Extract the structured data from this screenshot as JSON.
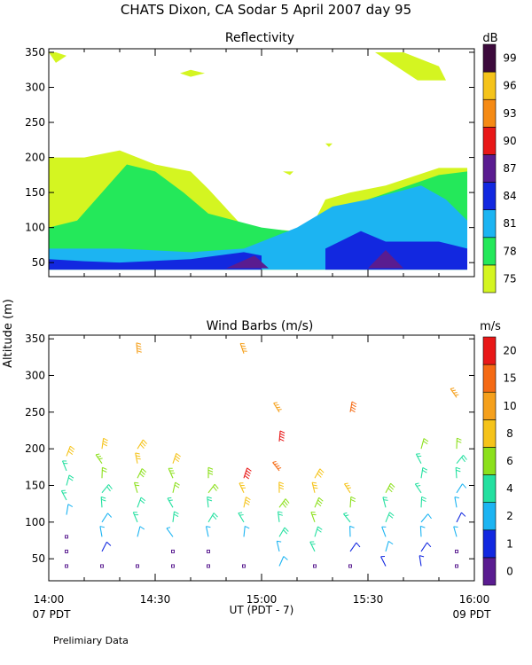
{
  "title": "CHATS Dixon, CA  Sodar    5 April 2007   day  95",
  "ylabel": "Altitude  (m)",
  "xlabel": "UT  (PDT - 7)",
  "left_corner_label": "07 PDT",
  "right_corner_label": "09 PDT",
  "footnote": "Prelimiary Data",
  "colors": {
    "reflectivity": [
      "#d4f521",
      "#24e85a",
      "#1cb4f2",
      "#1228e0",
      "#5a1c90",
      "#e81818",
      "#f58a14",
      "#f5c31a",
      "#3c0a3c"
    ],
    "wind": [
      "#5a1c90",
      "#1228e0",
      "#1cb4f2",
      "#24e0a0",
      "#8ce01c",
      "#f5c31a",
      "#f5a01c",
      "#f56a14",
      "#e81818"
    ]
  },
  "chart_data": [
    {
      "type": "heatmap",
      "title": "Reflectivity",
      "colorbar_label": "dB",
      "colorbar_ticks": [
        "75",
        "78",
        "81",
        "84",
        "87",
        "90",
        "93",
        "96",
        "99"
      ],
      "ylim": [
        30,
        355
      ],
      "yticks": [
        "50",
        "100",
        "150",
        "200",
        "250",
        "300",
        "350"
      ],
      "xlim": [
        "14:00",
        "16:00"
      ],
      "xticks": [
        "14:00",
        "14:30",
        "15:00",
        "15:30",
        "16:00"
      ],
      "grid": false,
      "contour_levels": [
        {
          "level_db": 75,
          "regions": [
            {
              "t": [
                0,
                10,
                20,
                30,
                40,
                45,
                55,
                70,
                75,
                78,
                85,
                95,
                110,
                118
              ],
              "alt": [
                200,
                200,
                210,
                190,
                180,
                155,
                100,
                95,
                110,
                140,
                150,
                160,
                185,
                185
              ],
              "base": 40
            },
            {
              "t": [
                0,
                2,
                5,
                2
              ],
              "alt": [
                350,
                350,
                345,
                335
              ]
            },
            {
              "t": [
                92,
                100,
                110,
                112,
                104
              ],
              "alt": [
                350,
                350,
                330,
                310,
                310
              ]
            },
            {
              "t": [
                37,
                40,
                44,
                40
              ],
              "alt": [
                320,
                325,
                320,
                315
              ]
            },
            {
              "t": [
                66,
                68,
                69
              ],
              "alt": [
                180,
                175,
                180
              ]
            },
            {
              "t": [
                78,
                79,
                80
              ],
              "alt": [
                220,
                215,
                220
              ]
            }
          ]
        },
        {
          "level_db": 78,
          "regions": [
            {
              "t": [
                0,
                8,
                15,
                22,
                30,
                38,
                45,
                60,
                68,
                75,
                90,
                110,
                118
              ],
              "alt": [
                100,
                110,
                150,
                190,
                180,
                150,
                120,
                100,
                95,
                90,
                140,
                175,
                180
              ],
              "base": 40
            }
          ]
        },
        {
          "level_db": 81,
          "regions": [
            {
              "t": [
                0,
                20,
                40,
                55,
                60,
                70,
                80,
                90,
                105,
                112,
                118
              ],
              "alt": [
                70,
                70,
                65,
                70,
                80,
                100,
                130,
                140,
                160,
                140,
                110
              ],
              "base": 40
            }
          ]
        },
        {
          "level_db": 84,
          "regions": [
            {
              "t": [
                0,
                10,
                20,
                40,
                55,
                60
              ],
              "alt": [
                55,
                52,
                50,
                55,
                65,
                60
              ],
              "base": 40
            },
            {
              "t": [
                78,
                88,
                95,
                110,
                118
              ],
              "alt": [
                70,
                95,
                80,
                80,
                70
              ],
              "base": 40
            }
          ]
        },
        {
          "level_db": 87,
          "regions": [
            {
              "t": [
                50,
                58,
                62
              ],
              "alt": [
                42,
                60,
                42
              ]
            },
            {
              "t": [
                90,
                95,
                100
              ],
              "alt": [
                42,
                68,
                42
              ]
            }
          ]
        }
      ]
    },
    {
      "type": "scatter",
      "title": "Wind Barbs (m/s)",
      "colorbar_label": "m/s",
      "colorbar_ticks": [
        "0",
        "1",
        "2",
        "4",
        "6",
        "8",
        "10",
        "15",
        "20"
      ],
      "ylim": [
        20,
        355
      ],
      "yticks": [
        "50",
        "100",
        "150",
        "200",
        "250",
        "300",
        "350"
      ],
      "xlim": [
        "14:00",
        "16:00"
      ],
      "xticks": [
        "14:00",
        "14:30",
        "15:00",
        "15:30",
        "16:00"
      ],
      "xlabel": "UT  (PDT - 7)",
      "grid": false,
      "profiles_minutes": [
        5,
        15,
        25,
        35,
        45,
        55,
        65,
        75,
        85,
        95,
        105,
        115
      ],
      "barbs": [
        {
          "t": 5,
          "alt": 40,
          "speed": 0.5
        },
        {
          "t": 5,
          "alt": 60,
          "speed": 0.5
        },
        {
          "t": 5,
          "alt": 80,
          "speed": 0.5
        },
        {
          "t": 5,
          "alt": 110,
          "speed": 3
        },
        {
          "t": 5,
          "alt": 130,
          "speed": 4
        },
        {
          "t": 5,
          "alt": 150,
          "speed": 5
        },
        {
          "t": 5,
          "alt": 170,
          "speed": 5
        },
        {
          "t": 5,
          "alt": 190,
          "speed": 9
        },
        {
          "t": 15,
          "alt": 40,
          "speed": 0.5
        },
        {
          "t": 15,
          "alt": 60,
          "speed": 1
        },
        {
          "t": 15,
          "alt": 80,
          "speed": 2
        },
        {
          "t": 15,
          "alt": 100,
          "speed": 3
        },
        {
          "t": 15,
          "alt": 120,
          "speed": 4
        },
        {
          "t": 15,
          "alt": 140,
          "speed": 5
        },
        {
          "t": 15,
          "alt": 160,
          "speed": 6
        },
        {
          "t": 15,
          "alt": 180,
          "speed": 7
        },
        {
          "t": 15,
          "alt": 200,
          "speed": 9
        },
        {
          "t": 25,
          "alt": 40,
          "speed": 0.5
        },
        {
          "t": 25,
          "alt": 80,
          "speed": 3
        },
        {
          "t": 25,
          "alt": 100,
          "speed": 4
        },
        {
          "t": 25,
          "alt": 120,
          "speed": 5
        },
        {
          "t": 25,
          "alt": 140,
          "speed": 6
        },
        {
          "t": 25,
          "alt": 160,
          "speed": 7
        },
        {
          "t": 25,
          "alt": 180,
          "speed": 8
        },
        {
          "t": 25,
          "alt": 200,
          "speed": 9
        },
        {
          "t": 25,
          "alt": 330,
          "speed": 10
        },
        {
          "t": 35,
          "alt": 40,
          "speed": 0.5
        },
        {
          "t": 35,
          "alt": 60,
          "speed": 0.5
        },
        {
          "t": 35,
          "alt": 80,
          "speed": 3
        },
        {
          "t": 35,
          "alt": 100,
          "speed": 4
        },
        {
          "t": 35,
          "alt": 120,
          "speed": 5
        },
        {
          "t": 35,
          "alt": 140,
          "speed": 6
        },
        {
          "t": 35,
          "alt": 160,
          "speed": 7
        },
        {
          "t": 35,
          "alt": 180,
          "speed": 9
        },
        {
          "t": 45,
          "alt": 40,
          "speed": 0.5
        },
        {
          "t": 45,
          "alt": 60,
          "speed": 0.5
        },
        {
          "t": 45,
          "alt": 80,
          "speed": 3
        },
        {
          "t": 45,
          "alt": 100,
          "speed": 4
        },
        {
          "t": 45,
          "alt": 120,
          "speed": 5
        },
        {
          "t": 45,
          "alt": 140,
          "speed": 6
        },
        {
          "t": 45,
          "alt": 160,
          "speed": 7
        },
        {
          "t": 55,
          "alt": 40,
          "speed": 0.5
        },
        {
          "t": 55,
          "alt": 80,
          "speed": 3
        },
        {
          "t": 55,
          "alt": 100,
          "speed": 4
        },
        {
          "t": 55,
          "alt": 120,
          "speed": 8
        },
        {
          "t": 55,
          "alt": 140,
          "speed": 8
        },
        {
          "t": 55,
          "alt": 160,
          "speed": 20
        },
        {
          "t": 55,
          "alt": 330,
          "speed": 10
        },
        {
          "t": 65,
          "alt": 40,
          "speed": 2
        },
        {
          "t": 65,
          "alt": 60,
          "speed": 3
        },
        {
          "t": 65,
          "alt": 80,
          "speed": 4
        },
        {
          "t": 65,
          "alt": 100,
          "speed": 5
        },
        {
          "t": 65,
          "alt": 120,
          "speed": 7
        },
        {
          "t": 65,
          "alt": 140,
          "speed": 8
        },
        {
          "t": 65,
          "alt": 170,
          "speed": 15
        },
        {
          "t": 65,
          "alt": 210,
          "speed": 20
        },
        {
          "t": 65,
          "alt": 250,
          "speed": 10
        },
        {
          "t": 75,
          "alt": 40,
          "speed": 0.5
        },
        {
          "t": 75,
          "alt": 60,
          "speed": 4
        },
        {
          "t": 75,
          "alt": 80,
          "speed": 5
        },
        {
          "t": 75,
          "alt": 100,
          "speed": 6
        },
        {
          "t": 75,
          "alt": 120,
          "speed": 7
        },
        {
          "t": 75,
          "alt": 140,
          "speed": 8
        },
        {
          "t": 75,
          "alt": 160,
          "speed": 9
        },
        {
          "t": 85,
          "alt": 40,
          "speed": 0.5
        },
        {
          "t": 85,
          "alt": 60,
          "speed": 1
        },
        {
          "t": 85,
          "alt": 80,
          "speed": 2
        },
        {
          "t": 85,
          "alt": 100,
          "speed": 4
        },
        {
          "t": 85,
          "alt": 120,
          "speed": 6
        },
        {
          "t": 85,
          "alt": 140,
          "speed": 8
        },
        {
          "t": 85,
          "alt": 250,
          "speed": 15
        },
        {
          "t": 95,
          "alt": 40,
          "speed": 1
        },
        {
          "t": 95,
          "alt": 60,
          "speed": 2
        },
        {
          "t": 95,
          "alt": 80,
          "speed": 2
        },
        {
          "t": 95,
          "alt": 100,
          "speed": 4
        },
        {
          "t": 95,
          "alt": 120,
          "speed": 5
        },
        {
          "t": 95,
          "alt": 140,
          "speed": 7
        },
        {
          "t": 105,
          "alt": 40,
          "speed": 1
        },
        {
          "t": 105,
          "alt": 60,
          "speed": 1
        },
        {
          "t": 105,
          "alt": 80,
          "speed": 2
        },
        {
          "t": 105,
          "alt": 100,
          "speed": 3
        },
        {
          "t": 105,
          "alt": 120,
          "speed": 4
        },
        {
          "t": 105,
          "alt": 140,
          "speed": 4
        },
        {
          "t": 105,
          "alt": 160,
          "speed": 5
        },
        {
          "t": 105,
          "alt": 180,
          "speed": 5
        },
        {
          "t": 105,
          "alt": 200,
          "speed": 6
        },
        {
          "t": 115,
          "alt": 40,
          "speed": 0.5
        },
        {
          "t": 115,
          "alt": 60,
          "speed": 0.5
        },
        {
          "t": 115,
          "alt": 80,
          "speed": 2
        },
        {
          "t": 115,
          "alt": 100,
          "speed": 1
        },
        {
          "t": 115,
          "alt": 120,
          "speed": 2
        },
        {
          "t": 115,
          "alt": 140,
          "speed": 3
        },
        {
          "t": 115,
          "alt": 160,
          "speed": 4
        },
        {
          "t": 115,
          "alt": 180,
          "speed": 5
        },
        {
          "t": 115,
          "alt": 200,
          "speed": 6
        },
        {
          "t": 115,
          "alt": 270,
          "speed": 10
        }
      ]
    }
  ]
}
